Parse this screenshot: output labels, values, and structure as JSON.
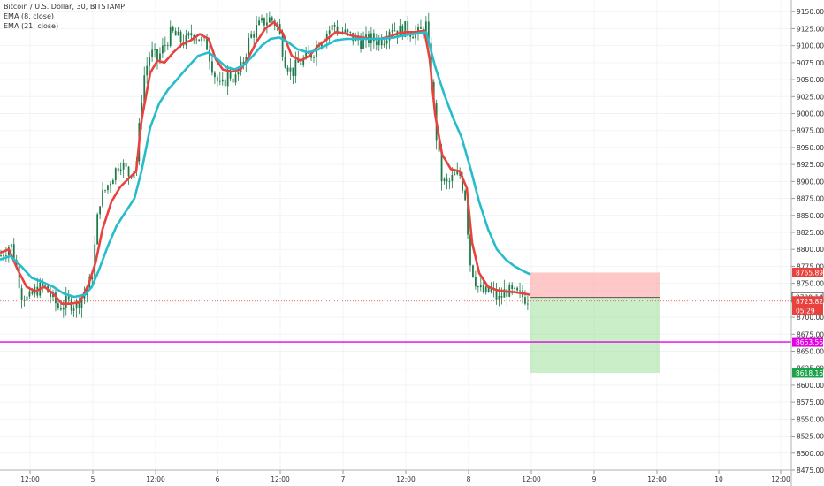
{
  "legend": {
    "symbol": "Bitcoin / U.S. Dollar, 30, BITSTAMP",
    "ema_fast": "EMA (8, close)",
    "ema_slow": "EMA (21, close)"
  },
  "colors": {
    "ema_fast": "#e8423f",
    "ema_slow": "#26bccc",
    "candle": "#1e7a4a",
    "support": "#e600e6",
    "stop": "#ff9a9a",
    "target": "#9fe09a"
  },
  "chart_data": {
    "type": "line",
    "ylim": [
      8475,
      9162
    ],
    "y_ticks": [
      "9150.00",
      "9125.00",
      "9100.00",
      "9075.00",
      "9050.00",
      "9025.00",
      "9000.00",
      "8975.00",
      "8950.00",
      "8925.00",
      "8900.00",
      "8875.00",
      "8850.00",
      "8825.00",
      "8800.00",
      "8775.00",
      "8750.00",
      "8725.00",
      "8700.00",
      "8675.00",
      "8650.00",
      "8625.00",
      "8600.00",
      "8575.00",
      "8550.00",
      "8525.00",
      "8500.00",
      "8475.00"
    ],
    "x_ticks": [
      {
        "label": "12:00",
        "t": 34
      },
      {
        "label": "5",
        "t": 105
      },
      {
        "label": "12:00",
        "t": 176
      },
      {
        "label": "6",
        "t": 246
      },
      {
        "label": "12:00",
        "t": 317
      },
      {
        "label": "7",
        "t": 388
      },
      {
        "label": "12:00",
        "t": 459
      },
      {
        "label": "8",
        "t": 530
      },
      {
        "label": "12:00",
        "t": 601
      },
      {
        "label": "9",
        "t": 672
      },
      {
        "label": "12:00",
        "t": 743
      },
      {
        "label": "10",
        "t": 813
      },
      {
        "label": "12:00",
        "t": 883
      }
    ],
    "price_path": [
      [
        0,
        8790
      ],
      [
        12,
        8808
      ],
      [
        18,
        8780
      ],
      [
        24,
        8735
      ],
      [
        32,
        8725
      ],
      [
        40,
        8740
      ],
      [
        50,
        8745
      ],
      [
        58,
        8730
      ],
      [
        66,
        8715
      ],
      [
        76,
        8722
      ],
      [
        86,
        8718
      ],
      [
        96,
        8735
      ],
      [
        104,
        8760
      ],
      [
        112,
        8870
      ],
      [
        120,
        8890
      ],
      [
        128,
        8910
      ],
      [
        136,
        8930
      ],
      [
        146,
        8910
      ],
      [
        154,
        8925
      ],
      [
        162,
        9050
      ],
      [
        170,
        9090
      ],
      [
        178,
        9080
      ],
      [
        186,
        9100
      ],
      [
        194,
        9120
      ],
      [
        202,
        9110
      ],
      [
        210,
        9105
      ],
      [
        218,
        9120
      ],
      [
        226,
        9110
      ],
      [
        234,
        9100
      ],
      [
        242,
        9060
      ],
      [
        250,
        9035
      ],
      [
        258,
        9060
      ],
      [
        266,
        9050
      ],
      [
        274,
        9070
      ],
      [
        282,
        9110
      ],
      [
        290,
        9125
      ],
      [
        298,
        9135
      ],
      [
        306,
        9140
      ],
      [
        314,
        9130
      ],
      [
        322,
        9080
      ],
      [
        330,
        9060
      ],
      [
        338,
        9075
      ],
      [
        346,
        9080
      ],
      [
        354,
        9090
      ],
      [
        362,
        9110
      ],
      [
        370,
        9120
      ],
      [
        378,
        9130
      ],
      [
        386,
        9120
      ],
      [
        394,
        9115
      ],
      [
        402,
        9110
      ],
      [
        410,
        9105
      ],
      [
        418,
        9110
      ],
      [
        426,
        9108
      ],
      [
        434,
        9110
      ],
      [
        442,
        9130
      ],
      [
        450,
        9120
      ],
      [
        458,
        9125
      ],
      [
        466,
        9120
      ],
      [
        474,
        9118
      ],
      [
        482,
        9130
      ],
      [
        488,
        9050
      ],
      [
        494,
        8960
      ],
      [
        500,
        8900
      ],
      [
        506,
        8895
      ],
      [
        512,
        8905
      ],
      [
        520,
        8910
      ],
      [
        526,
        8880
      ],
      [
        532,
        8780
      ],
      [
        540,
        8745
      ],
      [
        548,
        8735
      ],
      [
        556,
        8740
      ],
      [
        564,
        8725
      ],
      [
        572,
        8740
      ],
      [
        580,
        8735
      ],
      [
        588,
        8732
      ],
      [
        596,
        8728
      ]
    ],
    "series": [
      {
        "name": "EMA (8, close)",
        "values": [
          [
            0,
            8795
          ],
          [
            10,
            8800
          ],
          [
            20,
            8770
          ],
          [
            30,
            8745
          ],
          [
            40,
            8738
          ],
          [
            50,
            8745
          ],
          [
            60,
            8735
          ],
          [
            70,
            8720
          ],
          [
            80,
            8720
          ],
          [
            90,
            8722
          ],
          [
            100,
            8748
          ],
          [
            108,
            8780
          ],
          [
            116,
            8830
          ],
          [
            126,
            8870
          ],
          [
            136,
            8892
          ],
          [
            146,
            8905
          ],
          [
            154,
            8915
          ],
          [
            160,
            8990
          ],
          [
            170,
            9060
          ],
          [
            178,
            9078
          ],
          [
            186,
            9075
          ],
          [
            196,
            9090
          ],
          [
            206,
            9102
          ],
          [
            216,
            9108
          ],
          [
            226,
            9117
          ],
          [
            236,
            9110
          ],
          [
            244,
            9080
          ],
          [
            252,
            9065
          ],
          [
            262,
            9062
          ],
          [
            272,
            9065
          ],
          [
            280,
            9080
          ],
          [
            290,
            9105
          ],
          [
            300,
            9125
          ],
          [
            310,
            9135
          ],
          [
            320,
            9118
          ],
          [
            330,
            9085
          ],
          [
            340,
            9078
          ],
          [
            350,
            9085
          ],
          [
            360,
            9100
          ],
          [
            370,
            9110
          ],
          [
            380,
            9120
          ],
          [
            390,
            9118
          ],
          [
            400,
            9114
          ],
          [
            410,
            9112
          ],
          [
            420,
            9110
          ],
          [
            430,
            9110
          ],
          [
            440,
            9113
          ],
          [
            450,
            9118
          ],
          [
            460,
            9120
          ],
          [
            470,
            9120
          ],
          [
            480,
            9122
          ],
          [
            486,
            9080
          ],
          [
            492,
            9000
          ],
          [
            500,
            8940
          ],
          [
            510,
            8918
          ],
          [
            520,
            8915
          ],
          [
            528,
            8890
          ],
          [
            534,
            8810
          ],
          [
            542,
            8765
          ],
          [
            552,
            8745
          ],
          [
            562,
            8740
          ],
          [
            572,
            8738
          ],
          [
            582,
            8737
          ],
          [
            592,
            8735
          ],
          [
            600,
            8733
          ]
        ]
      },
      {
        "name": "EMA (21, close)",
        "values": [
          [
            0,
            8785
          ],
          [
            12,
            8790
          ],
          [
            24,
            8775
          ],
          [
            36,
            8758
          ],
          [
            48,
            8752
          ],
          [
            60,
            8745
          ],
          [
            72,
            8735
          ],
          [
            84,
            8730
          ],
          [
            96,
            8733
          ],
          [
            104,
            8745
          ],
          [
            112,
            8770
          ],
          [
            122,
            8805
          ],
          [
            132,
            8835
          ],
          [
            142,
            8855
          ],
          [
            152,
            8875
          ],
          [
            160,
            8915
          ],
          [
            170,
            8980
          ],
          [
            180,
            9015
          ],
          [
            190,
            9035
          ],
          [
            200,
            9050
          ],
          [
            212,
            9068
          ],
          [
            224,
            9085
          ],
          [
            236,
            9090
          ],
          [
            246,
            9080
          ],
          [
            256,
            9068
          ],
          [
            266,
            9065
          ],
          [
            276,
            9072
          ],
          [
            286,
            9085
          ],
          [
            296,
            9100
          ],
          [
            306,
            9110
          ],
          [
            316,
            9112
          ],
          [
            326,
            9105
          ],
          [
            336,
            9095
          ],
          [
            348,
            9090
          ],
          [
            358,
            9093
          ],
          [
            368,
            9100
          ],
          [
            380,
            9108
          ],
          [
            392,
            9110
          ],
          [
            404,
            9110
          ],
          [
            418,
            9110
          ],
          [
            432,
            9110
          ],
          [
            446,
            9112
          ],
          [
            460,
            9116
          ],
          [
            472,
            9118
          ],
          [
            482,
            9120
          ],
          [
            492,
            9070
          ],
          [
            502,
            9030
          ],
          [
            512,
            8995
          ],
          [
            522,
            8965
          ],
          [
            532,
            8920
          ],
          [
            542,
            8870
          ],
          [
            552,
            8830
          ],
          [
            562,
            8800
          ],
          [
            572,
            8785
          ],
          [
            582,
            8775
          ],
          [
            592,
            8768
          ],
          [
            600,
            8763
          ]
        ]
      }
    ],
    "support_line": 8663.56,
    "position": {
      "x_start": 599,
      "x_end": 747,
      "entry": 8729.14,
      "stop": 8765.89,
      "target": 8618.16
    },
    "labels": [
      {
        "value": "8765.89",
        "y": 8765.89,
        "bg": "#e8423f",
        "fg": "#ffffff"
      },
      {
        "value": "8729.14",
        "y": 8729.14,
        "bg": "#ffffff",
        "fg": "#333333",
        "border": "#333333"
      },
      {
        "value": "8723.82",
        "y": 8723.82,
        "bg": "#e8423f",
        "fg": "#ffffff"
      },
      {
        "value": "05:29",
        "y": 8710,
        "bg": "#e8423f",
        "fg": "#ffffff"
      },
      {
        "value": "8663.56",
        "y": 8663.56,
        "bg": "#e600e6",
        "fg": "#ffffff"
      },
      {
        "value": "8618.16",
        "y": 8618.16,
        "bg": "#1aa34a",
        "fg": "#ffffff"
      }
    ]
  }
}
